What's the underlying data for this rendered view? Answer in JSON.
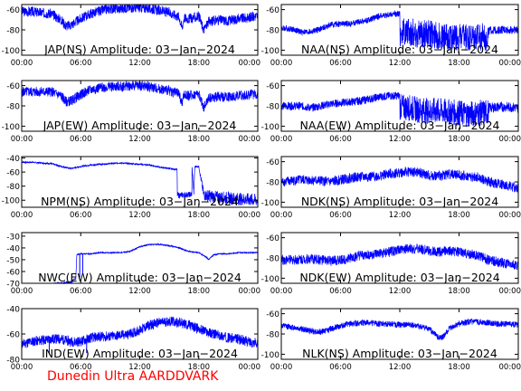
{
  "footer": {
    "text": "Dunedin Ultra AARDDVARK",
    "color": "#ff0000"
  },
  "colors": {
    "trace": "#0000ff",
    "axis": "#000000",
    "background": "#ffffff"
  },
  "chart_data": [
    {
      "type": "line",
      "title": "JAP(NS) Amplitude: 03−Jan−2024",
      "xticks": [
        "00:00",
        "06:00",
        "12:00",
        "18:00",
        "00:00"
      ],
      "ylim": [
        -105,
        -55
      ],
      "yticks": [
        -60,
        -80,
        -100
      ],
      "series": [
        {
          "x": [
            0,
            1,
            2,
            3,
            4,
            4.5,
            5,
            6,
            7,
            8,
            9,
            10,
            11,
            12,
            13,
            14,
            15,
            16,
            16.3,
            16.5,
            17,
            18,
            18.5,
            19,
            20,
            21,
            22,
            23,
            24
          ],
          "values": [
            -62,
            -62,
            -63,
            -64,
            -70,
            -76,
            -75,
            -69,
            -64,
            -61,
            -59,
            -59,
            -58,
            -58,
            -59,
            -61,
            -63,
            -67,
            -78,
            -68,
            -69,
            -67,
            -80,
            -72,
            -70,
            -71,
            -69,
            -68,
            -66
          ],
          "noise": 5,
          "spikes": []
        }
      ]
    },
    {
      "type": "line",
      "title": "NAA(NS) Amplitude: 03−Jan−2024",
      "xticks": [
        "00:00",
        "06:00",
        "12:00",
        "18:00",
        "00:00"
      ],
      "ylim": [
        -105,
        -55
      ],
      "yticks": [
        -60,
        -80,
        -100
      ],
      "series": [
        {
          "x": [
            0,
            1,
            2,
            3,
            4,
            5,
            6,
            7,
            8,
            9,
            10,
            11,
            12,
            12.01,
            13,
            14,
            15,
            16,
            17,
            18,
            19,
            20,
            21,
            21.01,
            22,
            23,
            24
          ],
          "values": [
            -78,
            -79,
            -82,
            -82,
            -79,
            -75,
            -74,
            -74,
            -72,
            -70,
            -66,
            -65,
            -64,
            -82,
            -82,
            -84,
            -84,
            -86,
            -87,
            -87,
            -88,
            -88,
            -86,
            -81,
            -80,
            -80,
            -80
          ],
          "noise": [
            3,
            3,
            3,
            3,
            3,
            3,
            3,
            3,
            3,
            3,
            3,
            3,
            3,
            14,
            14,
            14,
            14,
            14,
            14,
            14,
            14,
            14,
            14,
            4,
            4,
            4,
            4
          ],
          "spikes": []
        }
      ]
    },
    {
      "type": "line",
      "title": "JAP(EW) Amplitude: 03−Jan−2024",
      "xticks": [
        "00:00",
        "06:00",
        "12:00",
        "18:00",
        "00:00"
      ],
      "ylim": [
        -105,
        -55
      ],
      "yticks": [
        -60,
        -80,
        -100
      ],
      "series": [
        {
          "x": [
            0,
            1,
            2,
            3,
            4,
            4.5,
            5,
            6,
            7,
            8,
            9,
            10,
            11,
            12,
            13,
            14,
            15,
            16,
            16.3,
            16.5,
            17,
            18,
            18.5,
            19,
            20,
            21,
            22,
            23,
            24
          ],
          "values": [
            -66,
            -66,
            -66,
            -66,
            -70,
            -76,
            -75,
            -69,
            -64,
            -62,
            -61,
            -61,
            -60,
            -60,
            -61,
            -63,
            -65,
            -68,
            -78,
            -69,
            -70,
            -68,
            -82,
            -72,
            -71,
            -71,
            -70,
            -69,
            -68
          ],
          "noise": 5,
          "spikes": []
        }
      ]
    },
    {
      "type": "line",
      "title": "NAA(EW) Amplitude: 03−Jan−2024",
      "xticks": [
        "00:00",
        "06:00",
        "12:00",
        "18:00",
        "00:00"
      ],
      "ylim": [
        -105,
        -55
      ],
      "yticks": [
        -60,
        -80,
        -100
      ],
      "series": [
        {
          "x": [
            0,
            1,
            2,
            3,
            4,
            5,
            6,
            7,
            8,
            9,
            10,
            11,
            12,
            12.01,
            13,
            14,
            15,
            16,
            17,
            18,
            19,
            20,
            21,
            21.01,
            22,
            23,
            24
          ],
          "values": [
            -80,
            -80,
            -80,
            -82,
            -80,
            -78,
            -77,
            -76,
            -75,
            -73,
            -71,
            -70,
            -70,
            -81,
            -82,
            -84,
            -85,
            -85,
            -86,
            -87,
            -88,
            -87,
            -86,
            -82,
            -81,
            -81,
            -82
          ],
          "noise": [
            4,
            4,
            4,
            4,
            4,
            4,
            4,
            4,
            4,
            4,
            4,
            4,
            4,
            13,
            13,
            13,
            13,
            13,
            13,
            13,
            13,
            13,
            13,
            5,
            5,
            5,
            5
          ],
          "spikes": []
        }
      ]
    },
    {
      "type": "line",
      "title": "NPM(NS) Amplitude: 03−Jan−2024",
      "xticks": [
        "00:00",
        "06:00",
        "12:00",
        "18:00",
        "00:00"
      ],
      "ylim": [
        -110,
        -38
      ],
      "yticks": [
        -40,
        -60,
        -80,
        -100
      ],
      "series": [
        {
          "x": [
            0,
            1,
            2,
            3,
            4,
            5,
            6,
            7,
            8,
            9,
            10,
            11,
            12,
            13,
            14,
            15,
            15.5,
            15.8,
            15.81,
            16,
            17,
            17.3,
            17.31,
            17.5,
            17.6,
            18,
            18.5,
            19,
            20,
            21,
            22,
            23,
            24
          ],
          "values": [
            -46,
            -46,
            -47,
            -48,
            -52,
            -55,
            -52,
            -50,
            -49,
            -48,
            -47,
            -48,
            -49,
            -50,
            -53,
            -55,
            -56,
            -56,
            -92,
            -93,
            -92,
            -92,
            -52,
            -90,
            -52,
            -52,
            -92,
            -94,
            -96,
            -97,
            -98,
            -99,
            -100
          ],
          "noise": [
            1,
            1,
            1,
            1,
            1,
            1,
            1,
            1,
            1,
            1,
            1,
            1,
            1,
            1,
            1,
            1,
            1,
            1,
            4,
            4,
            4,
            4,
            1,
            4,
            1,
            1,
            8,
            9,
            9,
            9,
            9,
            9,
            9
          ],
          "spikes": []
        }
      ]
    },
    {
      "type": "line",
      "title": "NDK(NS) Amplitude: 03−Jan−2024",
      "xticks": [
        "00:00",
        "06:00",
        "12:00",
        "18:00",
        "00:00"
      ],
      "ylim": [
        -105,
        -55
      ],
      "yticks": [
        -60,
        -80,
        -100
      ],
      "series": [
        {
          "x": [
            0,
            1,
            2,
            3,
            4,
            5,
            6,
            7,
            8,
            9,
            10,
            11,
            12,
            13,
            14,
            15,
            16,
            17,
            18,
            19,
            20,
            21,
            22,
            23,
            24
          ],
          "values": [
            -80,
            -79,
            -78,
            -78,
            -79,
            -80,
            -78,
            -76,
            -75,
            -75,
            -74,
            -72,
            -71,
            -70,
            -71,
            -74,
            -74,
            -72,
            -73,
            -75,
            -76,
            -80,
            -82,
            -84,
            -86
          ],
          "noise": 5,
          "spikes": []
        }
      ]
    },
    {
      "type": "line",
      "title": "NWC(EW) Amplitude: 03−Jan−2024",
      "xticks": [
        "00:00",
        "06:00",
        "12:00",
        "18:00",
        "00:00"
      ],
      "ylim": [
        -70,
        -27
      ],
      "yticks": [
        -30,
        -40,
        -50,
        -60,
        -70
      ],
      "series": [
        {
          "x": [
            0,
            1,
            2,
            3,
            4,
            5,
            5.5,
            5.6,
            6,
            7,
            8,
            9,
            10,
            11,
            12,
            13,
            14,
            15,
            16,
            17,
            18,
            18.8,
            19,
            19.5,
            20,
            21,
            22,
            23,
            24
          ],
          "values": [
            -72,
            -72,
            -71,
            -71,
            -70,
            -69,
            -66,
            -46,
            -45,
            -45,
            -44,
            -44,
            -44,
            -43,
            -39,
            -37,
            -37,
            -38,
            -40,
            -43,
            -44,
            -48,
            -50,
            -46,
            -45,
            -45,
            -44,
            -44,
            -44
          ],
          "noise": [
            1,
            1,
            1,
            1,
            1,
            1,
            1,
            0.5,
            0.5,
            0.5,
            0.5,
            0.5,
            0.5,
            0.5,
            0.5,
            0.5,
            0.5,
            0.5,
            0.5,
            0.5,
            0.5,
            0.5,
            0.5,
            0.5,
            0.5,
            0.5,
            0.5,
            0.5,
            0.5
          ],
          "spikes": [
            {
              "x": 5.9,
              "to": -65
            },
            {
              "x": 6.2,
              "to": -62
            }
          ]
        }
      ]
    },
    {
      "type": "line",
      "title": "NDK(EW) Amplitude: 03−Jan−2024",
      "xticks": [
        "00:00",
        "06:00",
        "12:00",
        "18:00",
        "00:00"
      ],
      "ylim": [
        -105,
        -55
      ],
      "yticks": [
        -60,
        -80,
        -100
      ],
      "series": [
        {
          "x": [
            0,
            1,
            2,
            3,
            4,
            5,
            6,
            7,
            8,
            9,
            10,
            11,
            12,
            13,
            14,
            15,
            16,
            17,
            18,
            19,
            20,
            21,
            22,
            23,
            24
          ],
          "values": [
            -82,
            -82,
            -81,
            -81,
            -82,
            -83,
            -82,
            -80,
            -78,
            -77,
            -76,
            -74,
            -72,
            -71,
            -71,
            -73,
            -74,
            -73,
            -74,
            -76,
            -78,
            -82,
            -84,
            -86,
            -88
          ],
          "noise": 5,
          "spikes": []
        }
      ]
    },
    {
      "type": "line",
      "title": "IND(EW) Amplitude: 03−Jan−2024",
      "xticks": [
        "00:00",
        "06:00",
        "12:00",
        "18:00",
        "00:00"
      ],
      "ylim": [
        -80,
        -40
      ],
      "yticks": [
        -40,
        -60,
        -80
      ],
      "series": [
        {
          "x": [
            0,
            1,
            2,
            3,
            4,
            5,
            6,
            7,
            8,
            9,
            10,
            11,
            12,
            13,
            14,
            15,
            16,
            17,
            18,
            19,
            20,
            21,
            22,
            23,
            24
          ],
          "values": [
            -68,
            -66,
            -65,
            -64,
            -64,
            -66,
            -66,
            -63,
            -62,
            -62,
            -61,
            -60,
            -57,
            -53,
            -51,
            -50,
            -51,
            -53,
            -56,
            -59,
            -61,
            -63,
            -64,
            -66,
            -67
          ],
          "noise": 4,
          "spikes": [
            {
              "x": 2.8,
              "to": -76
            },
            {
              "x": 6.6,
              "to": -75
            }
          ]
        }
      ]
    },
    {
      "type": "line",
      "title": "NLK(NS) Amplitude: 03−Jan−2024",
      "xticks": [
        "00:00",
        "06:00",
        "12:00",
        "18:00",
        "00:00"
      ],
      "ylim": [
        -105,
        -55
      ],
      "yticks": [
        -60,
        -80,
        -100
      ],
      "series": [
        {
          "x": [
            0,
            1,
            2,
            3,
            4,
            5,
            6,
            7,
            8,
            9,
            10,
            11,
            12,
            13,
            14,
            15,
            15.5,
            16,
            16.5,
            17,
            18,
            19,
            20,
            21,
            22,
            23,
            24
          ],
          "values": [
            -72,
            -73,
            -75,
            -77,
            -78,
            -75,
            -72,
            -70,
            -69,
            -69,
            -70,
            -70,
            -71,
            -71,
            -73,
            -75,
            -80,
            -84,
            -82,
            -75,
            -70,
            -68,
            -68,
            -69,
            -70,
            -70,
            -71
          ],
          "noise": 3,
          "spikes": []
        }
      ]
    }
  ]
}
